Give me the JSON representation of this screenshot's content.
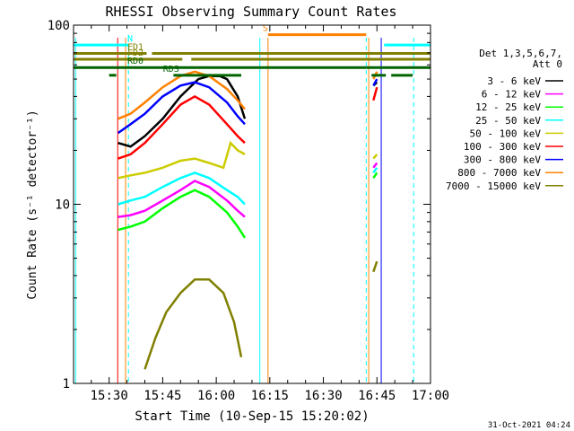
{
  "chart_data": {
    "type": "line",
    "title": "RHESSI Observing Summary Count Rates",
    "xlabel": "Start Time (10-Sep-15 15:20:02)",
    "ylabel": "Count Rate (s⁻¹ detector⁻¹)",
    "x_ticks": [
      "15:30",
      "15:45",
      "16:00",
      "16:15",
      "16:30",
      "16:45",
      "17:00"
    ],
    "x_tick_minutes": [
      30,
      45,
      60,
      75,
      90,
      105,
      120
    ],
    "xlim_minutes": [
      20.03,
      120
    ],
    "ylim": [
      1,
      100
    ],
    "y_scale": "log",
    "y_tick_labels": [
      "1",
      "10",
      "100"
    ],
    "y_ticks": [
      1,
      10,
      100
    ],
    "legend_header": [
      "Det 1,3,5,6,7,",
      "Att 0"
    ],
    "legend_placement": "right",
    "series": [
      {
        "name": "3 - 6 keV",
        "color": "#000000",
        "segments": [
          [
            [
              32.5,
              22
            ],
            [
              36,
              21
            ],
            [
              40,
              24
            ],
            [
              45,
              30
            ],
            [
              50,
              40
            ],
            [
              55,
              50
            ],
            [
              58,
              52
            ],
            [
              61,
              52
            ],
            [
              63,
              50
            ],
            [
              66,
              40
            ],
            [
              68,
              30
            ]
          ],
          [
            [
              104,
              46
            ],
            [
              105,
              48
            ]
          ]
        ]
      },
      {
        "name": "6 - 12 keV",
        "color": "#ff00ff",
        "segments": [
          [
            [
              32.5,
              8.5
            ],
            [
              36,
              8.7
            ],
            [
              40,
              9.2
            ],
            [
              45,
              10.5
            ],
            [
              50,
              12
            ],
            [
              54,
              13.5
            ],
            [
              58,
              12.5
            ],
            [
              63,
              10.5
            ],
            [
              66,
              9.2
            ],
            [
              68,
              8.5
            ]
          ],
          [
            [
              104,
              16
            ],
            [
              105,
              17
            ]
          ]
        ]
      },
      {
        "name": "12 - 25 keV",
        "color": "#00ff00",
        "segments": [
          [
            [
              32.5,
              7.2
            ],
            [
              36,
              7.5
            ],
            [
              40,
              8
            ],
            [
              45,
              9.5
            ],
            [
              50,
              11
            ],
            [
              54,
              12
            ],
            [
              58,
              11
            ],
            [
              63,
              9
            ],
            [
              66,
              7.5
            ],
            [
              68,
              6.5
            ]
          ],
          [
            [
              104,
              14
            ],
            [
              105,
              15
            ]
          ]
        ]
      },
      {
        "name": "25 - 50 keV",
        "color": "#00ffff",
        "segments": [
          [
            [
              32.5,
              10
            ],
            [
              36,
              10.5
            ],
            [
              40,
              11
            ],
            [
              45,
              12.5
            ],
            [
              50,
              14
            ],
            [
              54,
              15
            ],
            [
              58,
              14
            ],
            [
              63,
              12
            ],
            [
              66,
              11
            ],
            [
              68,
              10
            ]
          ],
          [
            [
              104,
              15
            ],
            [
              105,
              16
            ]
          ]
        ]
      },
      {
        "name": "50 - 100 keV",
        "color": "#cccc00",
        "segments": [
          [
            [
              32.5,
              14
            ],
            [
              36,
              14.5
            ],
            [
              40,
              15
            ],
            [
              45,
              16
            ],
            [
              50,
              17.5
            ],
            [
              54,
              18
            ],
            [
              58,
              17
            ],
            [
              62,
              16
            ],
            [
              64,
              22
            ],
            [
              66,
              20
            ],
            [
              68,
              19
            ]
          ],
          [
            [
              104,
              18
            ],
            [
              105,
              19
            ]
          ]
        ]
      },
      {
        "name": "100 - 300 keV",
        "color": "#ff0000",
        "segments": [
          [
            [
              32.5,
              18
            ],
            [
              36,
              19
            ],
            [
              40,
              22
            ],
            [
              45,
              28
            ],
            [
              50,
              36
            ],
            [
              54,
              40
            ],
            [
              58,
              36
            ],
            [
              63,
              28
            ],
            [
              66,
              24
            ],
            [
              68,
              22
            ]
          ],
          [
            [
              104,
              38
            ],
            [
              105,
              45
            ]
          ]
        ]
      },
      {
        "name": "300 - 800 keV",
        "color": "#0000ff",
        "segments": [
          [
            [
              32.5,
              25
            ],
            [
              36,
              28
            ],
            [
              40,
              32
            ],
            [
              45,
              40
            ],
            [
              50,
              46
            ],
            [
              54,
              48
            ],
            [
              58,
              45
            ],
            [
              63,
              37
            ],
            [
              66,
              31
            ],
            [
              68,
              28
            ]
          ],
          [
            [
              104,
              46
            ],
            [
              105,
              50
            ]
          ]
        ]
      },
      {
        "name": "800 - 7000 keV",
        "color": "#ff8000",
        "segments": [
          [
            [
              32.5,
              30
            ],
            [
              36,
              32
            ],
            [
              40,
              37
            ],
            [
              45,
              45
            ],
            [
              50,
              52
            ],
            [
              54,
              55
            ],
            [
              58,
              52
            ],
            [
              63,
              44
            ],
            [
              66,
              38
            ],
            [
              68,
              34
            ]
          ],
          [
            [
              104,
              50
            ],
            [
              105,
              55
            ]
          ]
        ]
      },
      {
        "name": "7000 - 15000 keV",
        "color": "#808000",
        "segments": [
          [
            [
              40,
              1.2
            ],
            [
              43,
              1.8
            ],
            [
              46,
              2.5
            ],
            [
              50,
              3.2
            ],
            [
              54,
              3.8
            ],
            [
              58,
              3.8
            ],
            [
              62,
              3.2
            ],
            [
              65,
              2.2
            ],
            [
              67,
              1.4
            ]
          ],
          [
            [
              104,
              4.2
            ],
            [
              105,
              4.8
            ]
          ]
        ]
      }
    ],
    "flag_bars": [
      {
        "label": "N",
        "color": "#00ffff",
        "y": 77.5,
        "segments": [
          [
            20.03,
            35.4
          ],
          [
            107,
            120
          ]
        ]
      },
      {
        "label": "S",
        "color": "#ff8000",
        "y": 88.5,
        "segments": [
          [
            74.5,
            102
          ]
        ]
      },
      {
        "label": "FD1",
        "color": "#808000",
        "y": 69.5,
        "segments": [
          [
            20.03,
            40.5
          ],
          [
            42,
            120
          ]
        ]
      },
      {
        "label": "FD2",
        "color": "#808000",
        "y": 64.5,
        "segments": [
          [
            20.03,
            50.5
          ],
          [
            53,
            120
          ]
        ]
      },
      {
        "label": "RD0",
        "color": "#006400",
        "y": 58.0,
        "segments": [
          [
            20.03,
            40
          ],
          [
            40,
            102
          ],
          [
            102,
            120
          ]
        ]
      },
      {
        "label": "RDS",
        "color": "#006400",
        "y": 52.5,
        "segments": [
          [
            30,
            32
          ],
          [
            48,
            67
          ],
          [
            103.5,
            107.5
          ],
          [
            109,
            115
          ]
        ]
      }
    ],
    "vertical_lines": [
      {
        "color": "#00ffff",
        "style": "dashed",
        "x": 35.4
      },
      {
        "color": "#00ffff",
        "style": "dashed",
        "x": 102
      },
      {
        "color": "#00ffff",
        "style": "dashed",
        "x": 115.3
      },
      {
        "color": "#ff8000",
        "style": "solid",
        "x": 34.6
      },
      {
        "color": "#ff8000",
        "style": "solid",
        "x": 74.5
      },
      {
        "color": "#ff8000",
        "style": "solid",
        "x": 102.7
      },
      {
        "color": "#ff0000",
        "style": "solid",
        "x": 32.4
      },
      {
        "color": "#0000ff",
        "style": "solid",
        "x": 106.2
      },
      {
        "color": "#00ffff",
        "style": "solid",
        "x": 20.6
      },
      {
        "color": "#00ffff",
        "style": "solid",
        "x": 72.2
      }
    ],
    "timestamp": "31-Oct-2021 04:24"
  }
}
